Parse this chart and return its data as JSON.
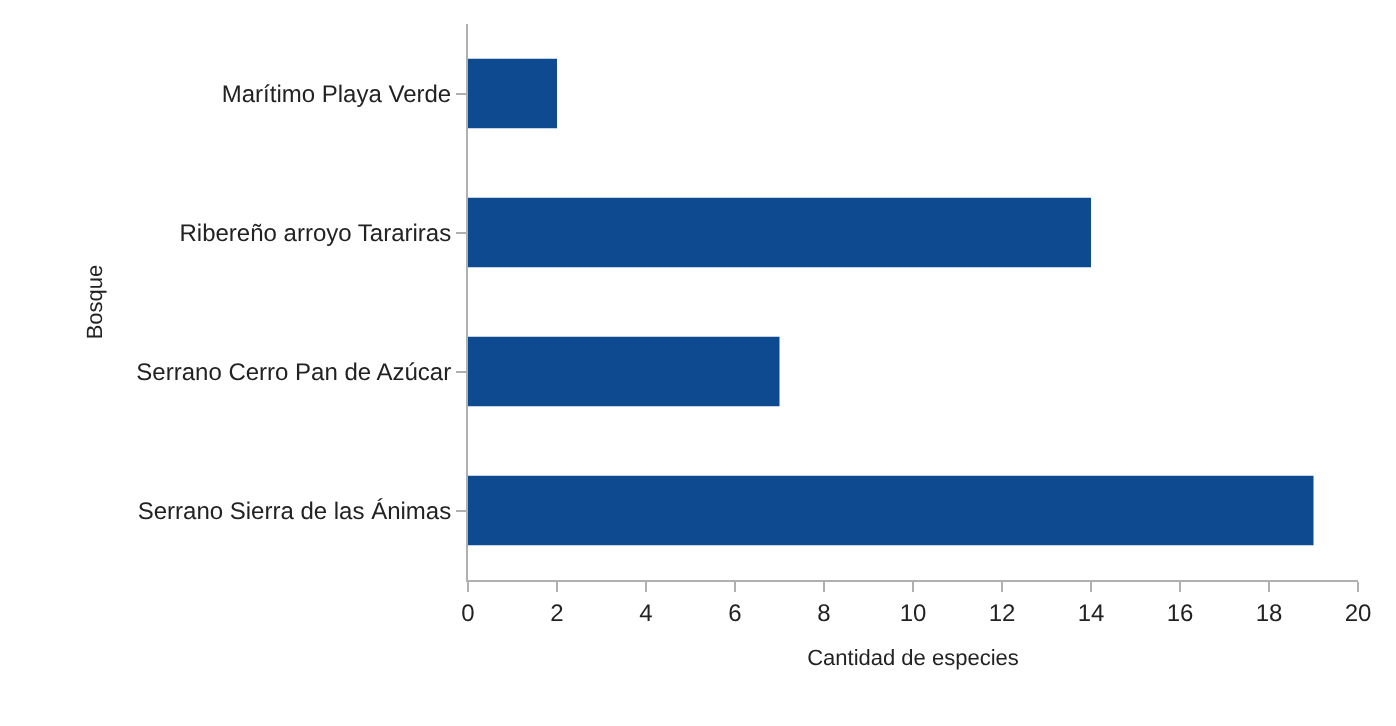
{
  "chart_data": {
    "type": "bar",
    "orientation": "horizontal",
    "xlabel": "Cantidad de especies",
    "ylabel": "Bosque",
    "categories": [
      "Marítimo Playa Verde",
      "Ribereño arroyo Tarariras",
      "Serrano Cerro Pan de Azúcar",
      "Serrano Sierra de las Ánimas"
    ],
    "values": [
      2,
      14,
      7,
      19
    ],
    "color": "#0d4a8f",
    "xlim": [
      0,
      20
    ],
    "xticks": [
      0,
      2,
      4,
      6,
      8,
      10,
      12,
      14,
      16,
      18,
      20
    ]
  }
}
